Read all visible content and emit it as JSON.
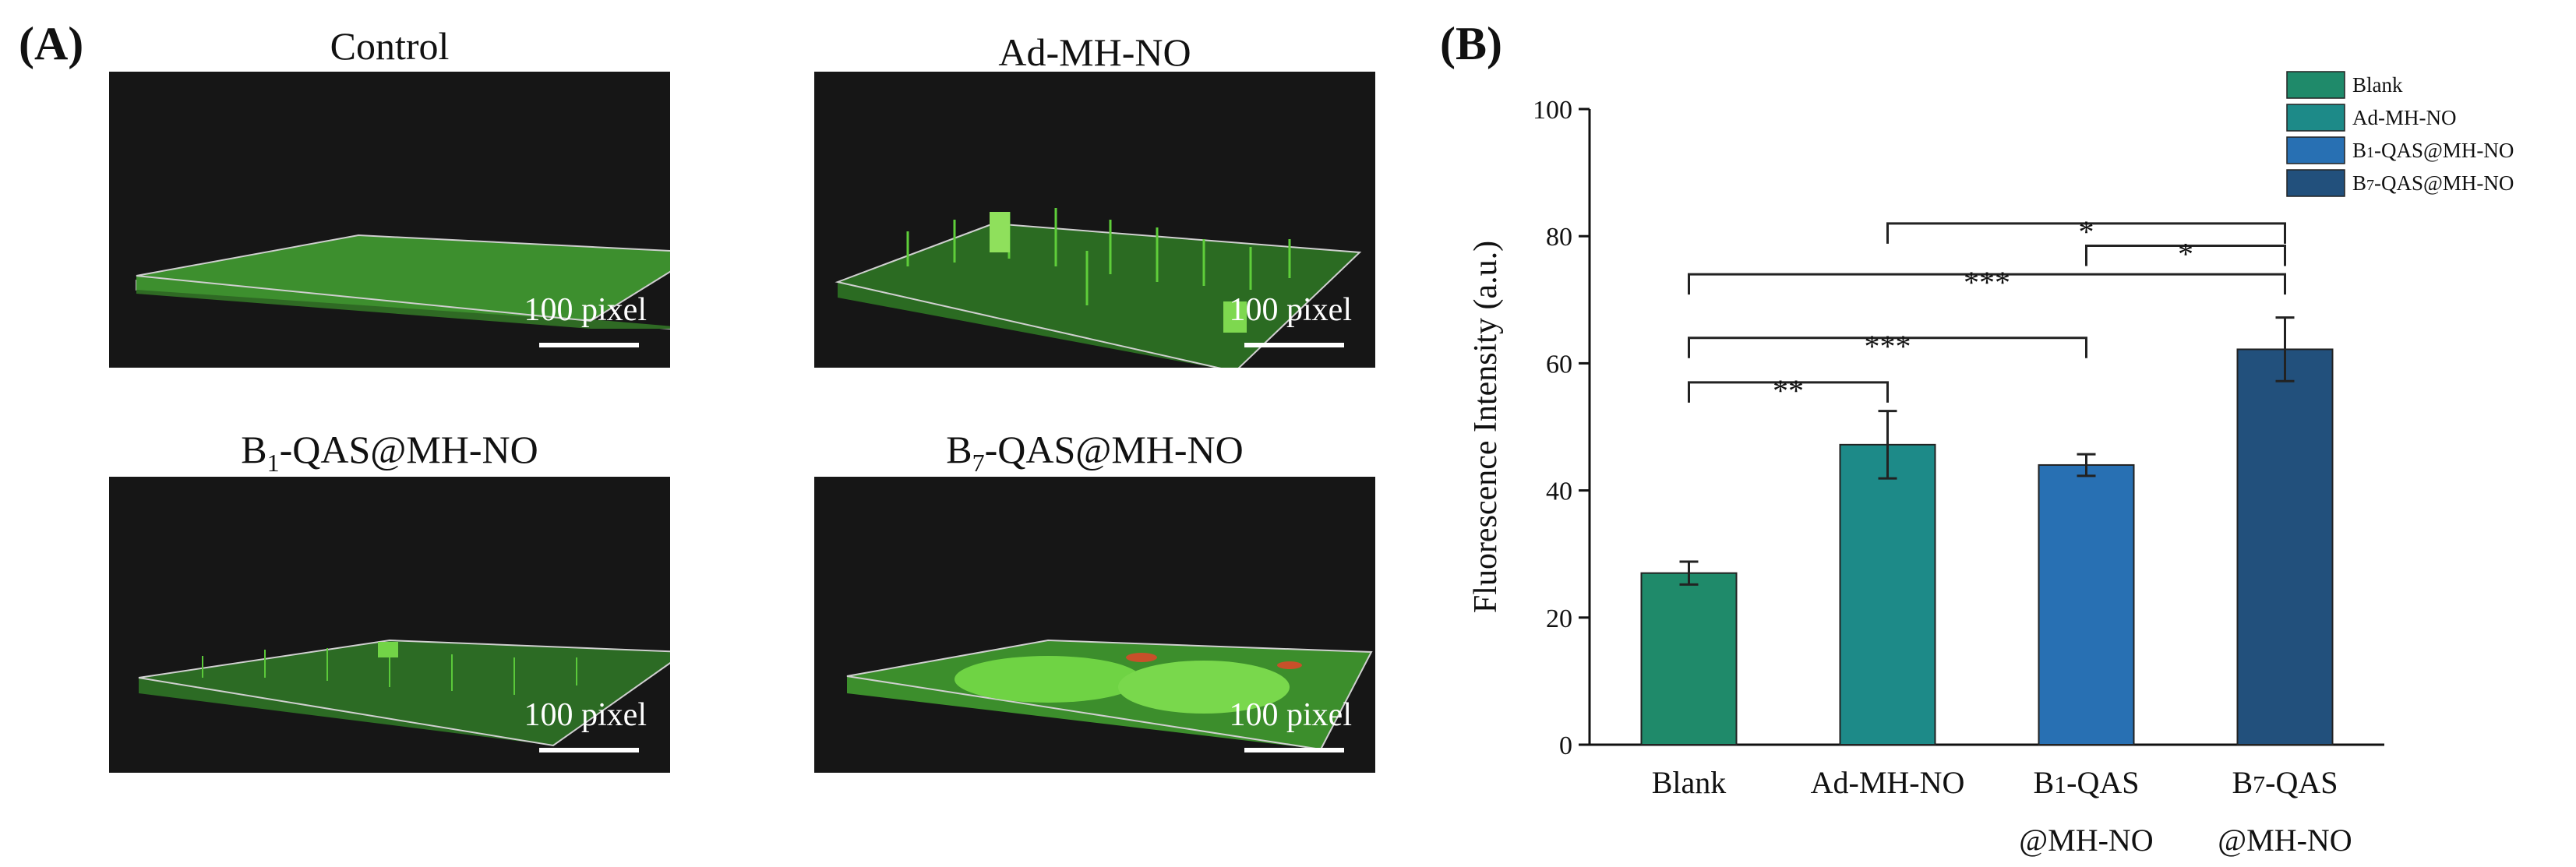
{
  "panel_a": {
    "label": "(A)",
    "images": [
      {
        "title": "Control",
        "scale": "100 pixel"
      },
      {
        "title": "Ad-MH-NO",
        "scale": "100 pixel"
      },
      {
        "title_prefix": "B",
        "title_sub": "1",
        "title_suffix": "-QAS@MH-NO",
        "scale": "100 pixel"
      },
      {
        "title_prefix": "B",
        "title_sub": "7",
        "title_suffix": "-QAS@MH-NO",
        "scale": "100 pixel"
      }
    ]
  },
  "panel_b": {
    "label": "(B)"
  },
  "chart_data": {
    "type": "bar",
    "ylabel": "Fluorescence Intensity (a.u.)",
    "ylim": [
      0,
      100
    ],
    "yticks": [
      0,
      20,
      40,
      60,
      80,
      100
    ],
    "categories": [
      {
        "line1": "Blank",
        "line2": ""
      },
      {
        "line1": "Ad-MH-NO",
        "line2": ""
      },
      {
        "line1": "B1-QAS",
        "line2": "@MH-NO"
      },
      {
        "line1": "B7-QAS",
        "line2": "@MH-NO"
      }
    ],
    "values": [
      27,
      47.2,
      44,
      62.2
    ],
    "errors": [
      1.8,
      5.3,
      1.7,
      5.0
    ],
    "colors": [
      "#1f8a6a",
      "#1d8a88",
      "#2870b3",
      "#22507c"
    ],
    "legend": [
      "Blank",
      "Ad-MH-NO",
      "B1-QAS@MH-NO",
      "B7-QAS@MH-NO"
    ],
    "significance": [
      {
        "from": 0,
        "to": 1,
        "level": 57,
        "label": "**"
      },
      {
        "from": 0,
        "to": 2,
        "level": 64,
        "label": "***"
      },
      {
        "from": 0,
        "to": 3,
        "level": 74,
        "label": "***"
      },
      {
        "from": 2,
        "to": 3,
        "level": 78.5,
        "label": "*"
      },
      {
        "from": 1,
        "to": 3,
        "level": 82,
        "label": "*"
      }
    ]
  }
}
